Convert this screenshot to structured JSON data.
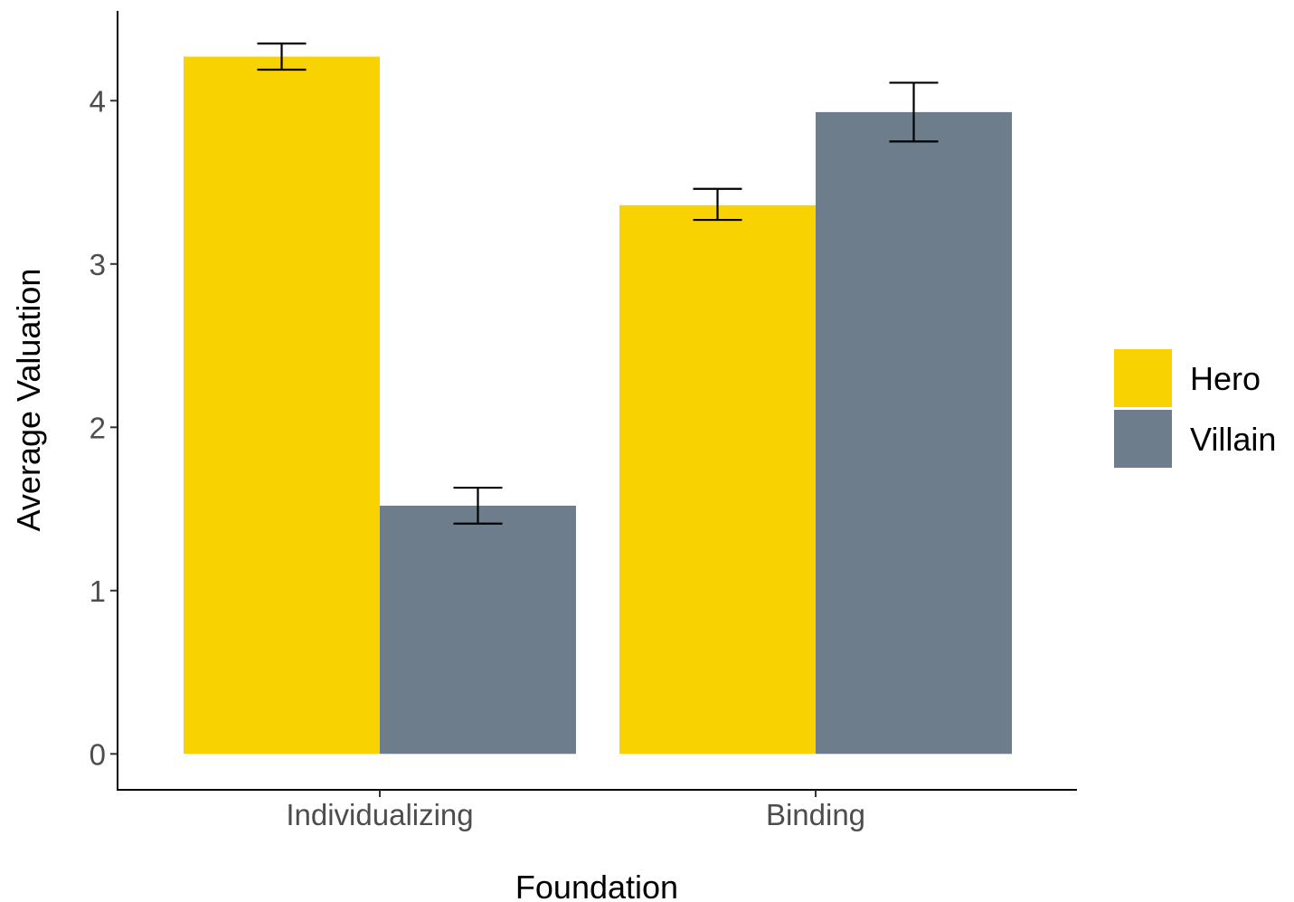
{
  "chart_data": {
    "type": "bar",
    "title": "",
    "xlabel": "Foundation",
    "ylabel": "Average Valuation",
    "categories": [
      "Individualizing",
      "Binding"
    ],
    "series": [
      {
        "name": "Hero",
        "color": "#f9d202",
        "values": [
          4.27,
          3.36
        ],
        "error_low": [
          4.19,
          3.27
        ],
        "error_high": [
          4.35,
          3.46
        ]
      },
      {
        "name": "Villain",
        "color": "#6e7d8b",
        "values": [
          1.52,
          3.93
        ],
        "error_low": [
          1.41,
          3.75
        ],
        "error_high": [
          1.63,
          4.11
        ]
      }
    ],
    "yticks": [
      0,
      1,
      2,
      3,
      4
    ],
    "ylim": [
      -0.22,
      4.55
    ],
    "grid": false,
    "legend_position": "right"
  }
}
